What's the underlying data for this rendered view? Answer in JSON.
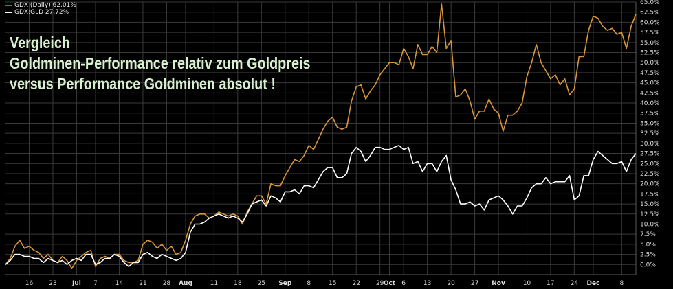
{
  "legend": [
    {
      "label": "GDX (Daily) 62.01%",
      "color": "#2e9b2e"
    },
    {
      "label": "GDX:GLD 27.72%",
      "color": "#ffffff"
    }
  ],
  "annotation": {
    "line1": "Vergleich",
    "line2": "Goldminen-Performance relativ zum Goldpreis",
    "line3": "versus Performance Goldminen absolut !"
  },
  "chart_data": {
    "type": "line",
    "title": "",
    "xlabel": "",
    "ylabel": "",
    "ylim": [
      -2.5,
      65
    ],
    "y_ticks": [
      "65.0%",
      "62.5%",
      "60.0%",
      "57.5%",
      "55.0%",
      "52.5%",
      "50.0%",
      "47.5%",
      "45.0%",
      "42.5%",
      "40.0%",
      "37.5%",
      "35.0%",
      "32.5%",
      "30.0%",
      "27.5%",
      "25.0%",
      "22.5%",
      "20.0%",
      "17.5%",
      "15.0%",
      "12.5%",
      "10.0%",
      "7.5%",
      "5.0%",
      "2.5%",
      "0.0%"
    ],
    "x_ticks": [
      {
        "label": "16",
        "i": 5,
        "bold": false
      },
      {
        "label": "23",
        "i": 10,
        "bold": false
      },
      {
        "label": "Jul",
        "i": 15,
        "bold": true
      },
      {
        "label": "7",
        "i": 19,
        "bold": false
      },
      {
        "label": "14",
        "i": 24,
        "bold": false
      },
      {
        "label": "21",
        "i": 29,
        "bold": false
      },
      {
        "label": "28",
        "i": 34,
        "bold": false
      },
      {
        "label": "Aug",
        "i": 38,
        "bold": true
      },
      {
        "label": "11",
        "i": 44,
        "bold": false
      },
      {
        "label": "18",
        "i": 49,
        "bold": false
      },
      {
        "label": "25",
        "i": 54,
        "bold": false
      },
      {
        "label": "Sep",
        "i": 59,
        "bold": true
      },
      {
        "label": "8",
        "i": 64,
        "bold": false
      },
      {
        "label": "15",
        "i": 69,
        "bold": false
      },
      {
        "label": "22",
        "i": 74,
        "bold": false
      },
      {
        "label": "29",
        "i": 79,
        "bold": false
      },
      {
        "label": "Oct",
        "i": 81,
        "bold": true
      },
      {
        "label": "6",
        "i": 84,
        "bold": false
      },
      {
        "label": "13",
        "i": 89,
        "bold": false
      },
      {
        "label": "20",
        "i": 94,
        "bold": false
      },
      {
        "label": "27",
        "i": 99,
        "bold": false
      },
      {
        "label": "Nov",
        "i": 104,
        "bold": true
      },
      {
        "label": "10",
        "i": 110,
        "bold": false
      },
      {
        "label": "17",
        "i": 115,
        "bold": false
      },
      {
        "label": "24",
        "i": 120,
        "bold": false
      },
      {
        "label": "Dec",
        "i": 124,
        "bold": true
      },
      {
        "label": "8",
        "i": 130,
        "bold": false
      }
    ],
    "grid": true,
    "series": [
      {
        "name": "GDX (Daily) 62.01%",
        "color": "#d8963a",
        "values": [
          0,
          1.5,
          4.5,
          6,
          4,
          4.5,
          3.5,
          3,
          1.5,
          2.5,
          1,
          0.5,
          2,
          1,
          -1,
          1,
          2,
          3,
          3.5,
          -0.5,
          1.5,
          2,
          1.5,
          2.5,
          2.5,
          1,
          0.5,
          0.5,
          1,
          5,
          6,
          5.5,
          4,
          5,
          3.5,
          4.5,
          2.5,
          3,
          6,
          10,
          12,
          12.5,
          12.5,
          11.5,
          12,
          13,
          12.5,
          12,
          12.5,
          12,
          10,
          13,
          15,
          17,
          17,
          15,
          20,
          19.5,
          19.5,
          22,
          24,
          26,
          25.5,
          27,
          29.5,
          28.5,
          31,
          33.5,
          35.5,
          36.5,
          34,
          33.5,
          34,
          40.5,
          44,
          44.5,
          41,
          43,
          44.5,
          47,
          48.5,
          50,
          50,
          49.5,
          53.5,
          51.5,
          48.5,
          54.5,
          52,
          52,
          54,
          52.5,
          64.5,
          53.5,
          55.5,
          41.5,
          42,
          43.5,
          40.5,
          36,
          38,
          38,
          41,
          38.5,
          37.5,
          33,
          37,
          37,
          38,
          40,
          46.5,
          50,
          54.5,
          50,
          48,
          46,
          47,
          44.5,
          46,
          42,
          43.5,
          51.5,
          51.5,
          58,
          61.5,
          61,
          59,
          58,
          58.5,
          57,
          57.5,
          53.5,
          59,
          62
        ]
      },
      {
        "name": "GDX:GLD 27.72%",
        "color": "#ffffff",
        "values": [
          0,
          1,
          2.5,
          2.5,
          2,
          2,
          1.5,
          1.5,
          0.5,
          1.5,
          1,
          0.5,
          1,
          0,
          1,
          1.5,
          1,
          2.5,
          2.5,
          0,
          0.5,
          1.5,
          1.5,
          2.5,
          2,
          0.5,
          -0.5,
          0.5,
          0.5,
          2.5,
          3,
          2,
          1.5,
          2.5,
          2,
          1.5,
          1,
          1.5,
          3,
          8,
          10,
          10,
          10.5,
          11.5,
          12,
          12.5,
          12,
          11.5,
          12,
          11.5,
          10.5,
          12.5,
          15,
          15.5,
          16,
          14.5,
          17,
          16.5,
          15.5,
          18,
          18,
          18.5,
          17.5,
          19.5,
          19.5,
          19,
          21,
          23,
          24,
          24,
          21.5,
          21.5,
          22.5,
          27.5,
          29,
          28,
          25.5,
          27,
          29,
          29,
          28.5,
          28.5,
          29,
          29.5,
          28.5,
          29,
          25,
          25.5,
          23,
          25,
          25,
          23,
          25.5,
          27,
          21,
          18.5,
          15,
          15,
          15.5,
          14.5,
          15,
          13.5,
          16,
          16.5,
          17,
          16,
          14.5,
          12.5,
          14.5,
          14.5,
          16.5,
          19,
          20,
          20,
          21.5,
          20,
          20.5,
          20.5,
          20.5,
          22,
          16,
          17,
          22,
          22,
          26,
          28,
          27,
          26,
          25,
          25,
          25.5,
          23,
          26,
          27.5
        ]
      }
    ]
  }
}
